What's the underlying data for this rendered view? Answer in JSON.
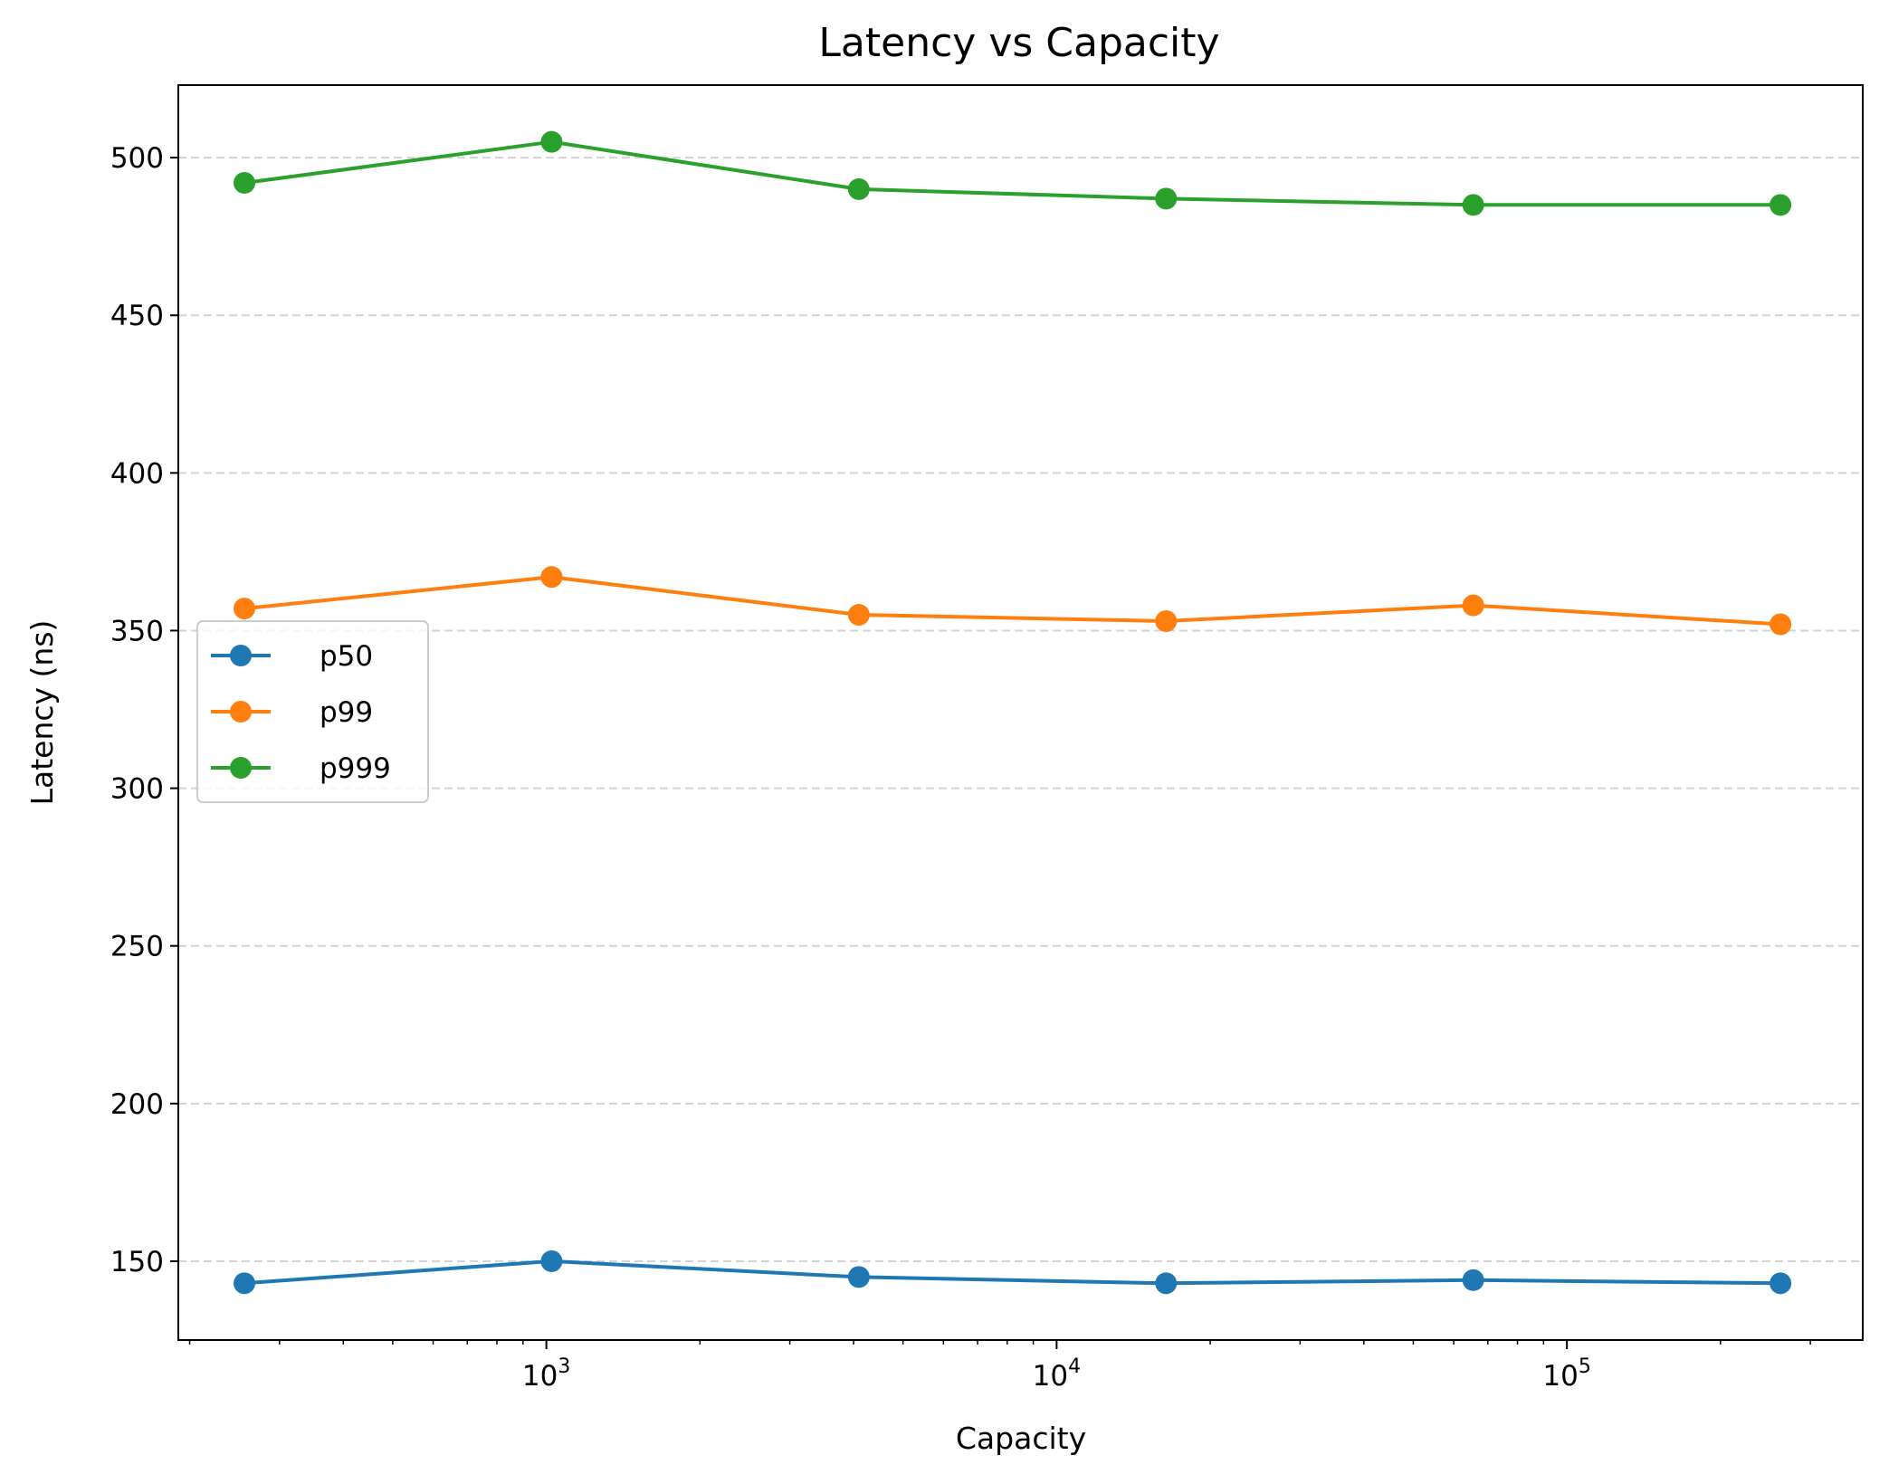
{
  "chart_data": {
    "type": "line",
    "title": "Latency vs Capacity",
    "xlabel": "Capacity",
    "ylabel": "Latency (ns)",
    "x_scale": "log",
    "x": [
      256,
      1024,
      4096,
      16384,
      65536,
      262144
    ],
    "xlim": [
      190,
      380000
    ],
    "ylim": [
      125,
      523
    ],
    "x_major_ticks": [
      {
        "value": 1000,
        "base": "10",
        "exp": "3"
      },
      {
        "value": 10000,
        "base": "10",
        "exp": "4"
      },
      {
        "value": 100000,
        "base": "10",
        "exp": "5"
      }
    ],
    "y_ticks": [
      150,
      200,
      250,
      300,
      350,
      400,
      450,
      500
    ],
    "y_tick_labels": [
      "150",
      "200",
      "250",
      "300",
      "350",
      "400",
      "450",
      "500"
    ],
    "grid": "y-dashed",
    "legend_position": "center-left",
    "series": [
      {
        "name": "p50",
        "color": "#1f77b4",
        "values": [
          143,
          150,
          145,
          143,
          144,
          143
        ]
      },
      {
        "name": "p99",
        "color": "#ff7f0e",
        "values": [
          357,
          367,
          355,
          353,
          358,
          352
        ]
      },
      {
        "name": "p999",
        "color": "#2ca02c",
        "values": [
          492,
          505,
          490,
          487,
          485,
          485
        ]
      }
    ]
  }
}
